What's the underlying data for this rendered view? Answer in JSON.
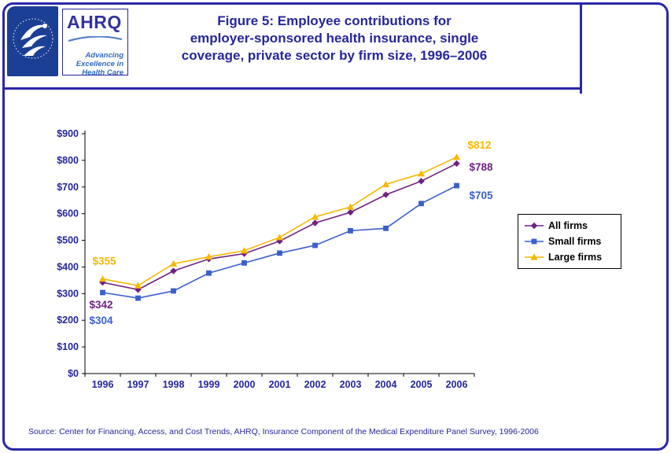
{
  "colors": {
    "navy_accent": "#26269C",
    "frame_border": "#2A28A8",
    "hhs_blue": "#1B3F94",
    "series_all_firms": "#702082",
    "series_small_firms": "#3A5FCD",
    "series_large_firms": "#F5B800"
  },
  "header": {
    "title_lines": [
      "Figure 5: Employee contributions for",
      "employer-sponsored health insurance, single",
      "coverage, private sector by firm size, 1996–2006"
    ],
    "ahrq_acronym": "AHRQ",
    "ahrq_tagline_lines": [
      "Advancing",
      "Excellence in",
      "Health Care"
    ]
  },
  "footer": {
    "source": "Source: Center for Financing, Access, and Cost Trends, AHRQ, Insurance Component of the Medical Expenditure Panel Survey, 1996-2006"
  },
  "chart_data": {
    "type": "line",
    "x": [
      "1996",
      "1997",
      "1998",
      "1999",
      "2000",
      "2001",
      "2002",
      "2003",
      "2004",
      "2005",
      "2006"
    ],
    "series": [
      {
        "name": "All firms",
        "marker": "diamond",
        "color": "#702082",
        "values": [
          342,
          315,
          385,
          430,
          450,
          497,
          565,
          605,
          671,
          722,
          788
        ],
        "label_start": "$342",
        "label_end": "$788"
      },
      {
        "name": "Small firms",
        "marker": "square",
        "color": "#3A5FCD",
        "values": [
          304,
          283,
          310,
          377,
          415,
          452,
          481,
          536,
          545,
          638,
          705
        ],
        "label_start": "$304",
        "label_end": "$705"
      },
      {
        "name": "Large firms",
        "marker": "triangle",
        "color": "#F5B800",
        "values": [
          355,
          330,
          412,
          438,
          461,
          511,
          588,
          625,
          710,
          750,
          812
        ],
        "label_start": "$355",
        "label_end": "$812"
      }
    ],
    "ylim": [
      0,
      900
    ],
    "ytick_labels": [
      "$0",
      "$100",
      "$200",
      "$300",
      "$400",
      "$500",
      "$600",
      "$700",
      "$800",
      "$900"
    ],
    "grid": false,
    "legend_position": "right",
    "legend_labels": [
      "All firms",
      "Small firms",
      "Large firms"
    ]
  }
}
